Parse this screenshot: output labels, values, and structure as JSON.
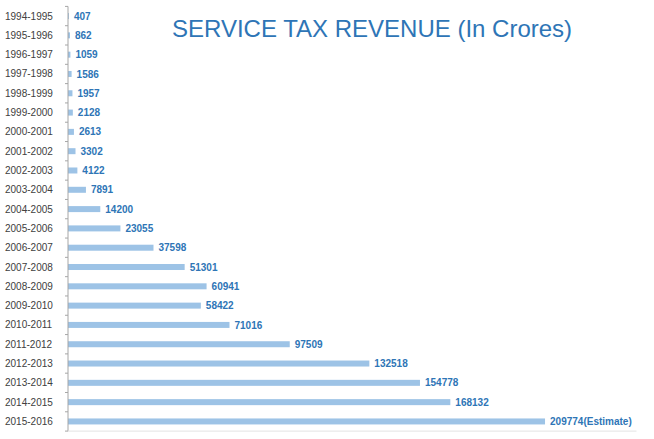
{
  "chart_data": {
    "type": "bar",
    "orientation": "horizontal",
    "title": "SERVICE TAX REVENUE (In Crores)",
    "categories": [
      "1994-1995",
      "1995-1996",
      "1996-1997",
      "1997-1998",
      "1998-1999",
      "1999-2000",
      "2000-2001",
      "2001-2002",
      "2002-2003",
      "2003-2004",
      "2004-2005",
      "2005-2006",
      "2006-2007",
      "2007-2008",
      "2008-2009",
      "2009-2010",
      "2010-2011",
      "2011-2012",
      "2012-2013",
      "2013-2014",
      "2014-2015",
      "2015-2016"
    ],
    "values": [
      407,
      862,
      1059,
      1586,
      1957,
      2128,
      2613,
      3302,
      4122,
      7891,
      14200,
      23055,
      37598,
      51301,
      60941,
      58422,
      71016,
      97509,
      132518,
      154778,
      168132,
      209774
    ],
    "value_labels": [
      "407",
      "862",
      "1059",
      "1586",
      "1957",
      "2128",
      "2613",
      "3302",
      "4122",
      "7891",
      "14200",
      "23055",
      "37598",
      "51301",
      "60941",
      "58422",
      "71016",
      "97509",
      "132518",
      "154778",
      "168132",
      "209774(Estimate)"
    ],
    "color": "#9dc3e6",
    "xlim": [
      0,
      250000
    ],
    "grid": false,
    "data_labels": true,
    "tick_labels": "y"
  }
}
